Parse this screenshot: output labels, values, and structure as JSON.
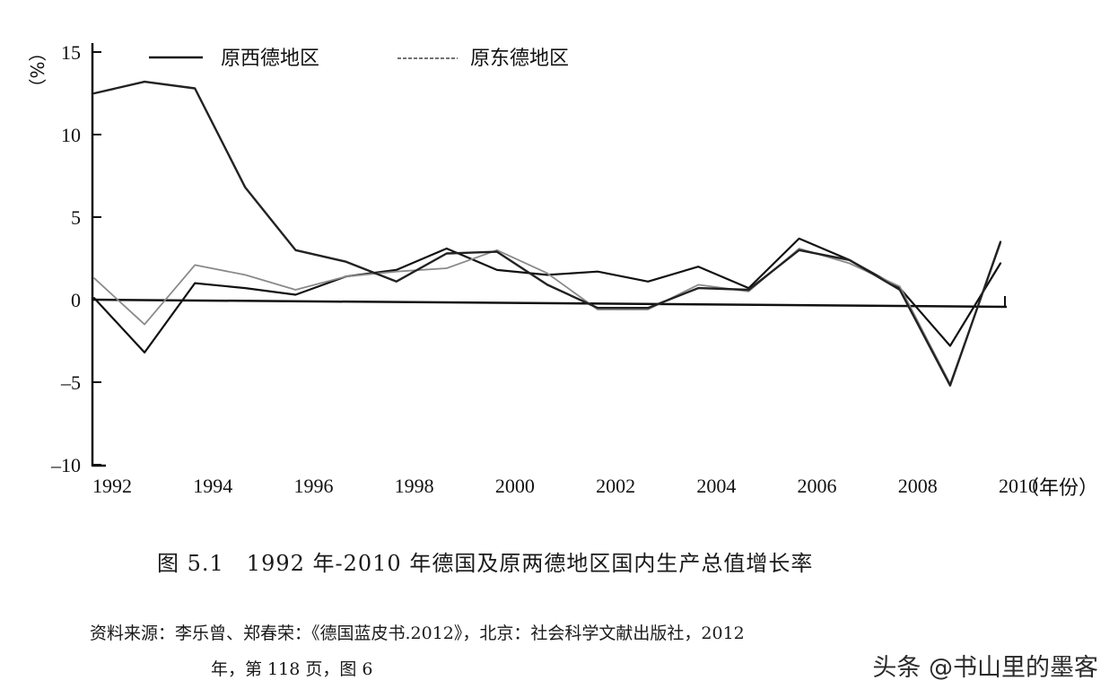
{
  "chart_data": {
    "type": "line",
    "x": [
      1992,
      1993,
      1994,
      1995,
      1996,
      1997,
      1998,
      1999,
      2000,
      2001,
      2002,
      2003,
      2004,
      2005,
      2006,
      2007,
      2008,
      2009,
      2010
    ],
    "x_tick_labels": [
      "1992",
      "1994",
      "1996",
      "1998",
      "2000",
      "2002",
      "2004",
      "2006",
      "2008",
      "2010"
    ],
    "x_unit": "（年份）",
    "y_unit": "（%）",
    "y_tick_labels": [
      "15",
      "10",
      "5",
      "0",
      "–5",
      "–10"
    ],
    "ylim": [
      -10,
      15
    ],
    "series": [
      {
        "name": "原西德地区",
        "style": "solid",
        "values": [
          0.1,
          -3.2,
          1.0,
          0.7,
          0.3,
          1.4,
          1.8,
          3.1,
          1.8,
          1.5,
          1.7,
          1.1,
          2.0,
          0.7,
          3.7,
          2.4,
          0.7,
          -2.8,
          2.2
        ]
      },
      {
        "name": "原东德地区",
        "style": "dashed",
        "values": [
          1.3,
          -1.5,
          2.1,
          1.5,
          0.6,
          1.4,
          1.7,
          1.9,
          3.0,
          1.6,
          -0.6,
          -0.6,
          0.9,
          0.5,
          3.1,
          2.2,
          0.8,
          -5.1,
          3.4
        ]
      },
      {
        "name": "",
        "style": "solid",
        "values": [
          12.5,
          13.2,
          12.8,
          6.8,
          3.0,
          2.3,
          1.1,
          2.8,
          2.9,
          0.9,
          -0.5,
          -0.5,
          0.7,
          0.6,
          3.0,
          2.4,
          0.6,
          -5.2,
          3.5
        ]
      }
    ]
  },
  "legend": {
    "west": "原西德地区",
    "east": "原东德地区"
  },
  "caption": "图 5.1　1992 年-2010 年德国及原两德地区国内生产总值增长率",
  "source": {
    "line1": "资料来源：李乐曾、郑春荣：《德国蓝皮书.2012》，北京：社会科学文献出版社，2012",
    "line2": "年，第 118 页，图 6"
  },
  "watermark": "头条 @书山里的墨客"
}
